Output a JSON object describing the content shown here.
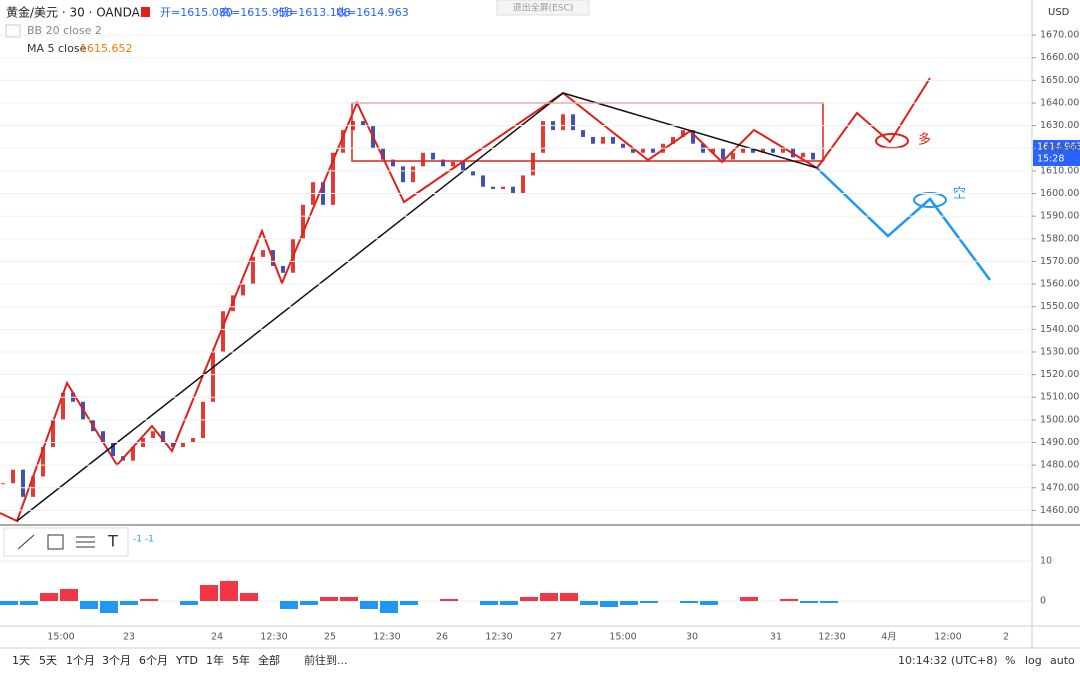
{
  "header": {
    "symbol": "黄金/美元 · 30 · OANDA",
    "open": "开=1615.080",
    "high": "高=1615.958",
    "low": "低=1613.108",
    "close": "收=1614.963",
    "bb": "BB 20 close 2",
    "ma_label": "MA 5 close",
    "ma_value": "1615.652",
    "exit": "退出全屏(ESC)",
    "currency": "USD",
    "price_tag": "1614.963",
    "countdown": "15:28"
  },
  "price_chart": {
    "ylim": [
      1454,
      1685.5
    ],
    "yticks": [
      {
        "value": 1460,
        "label": "1460.000"
      },
      {
        "value": 1470,
        "label": "1470.000"
      },
      {
        "value": 1480,
        "label": "1480.000"
      },
      {
        "value": 1490,
        "label": "1490.000"
      },
      {
        "value": 1500,
        "label": "1500.000"
      },
      {
        "value": 1510,
        "label": "1510.000"
      },
      {
        "value": 1520,
        "label": "1520.000"
      },
      {
        "value": 1530,
        "label": "1530.000"
      },
      {
        "value": 1540,
        "label": "1540.000"
      },
      {
        "value": 1550,
        "label": "1550.000"
      },
      {
        "value": 1560,
        "label": "1560.000"
      },
      {
        "value": 1570,
        "label": "1570.000"
      },
      {
        "value": 1580,
        "label": "1580.000"
      },
      {
        "value": 1590,
        "label": "1590.000"
      },
      {
        "value": 1600,
        "label": "1600.000"
      },
      {
        "value": 1610,
        "label": "1610.000"
      },
      {
        "value": 1620,
        "label": "1620.000"
      },
      {
        "value": 1630,
        "label": "1630.000"
      },
      {
        "value": 1640,
        "label": "1640.000"
      },
      {
        "value": 1650,
        "label": "1650.000"
      },
      {
        "value": 1660,
        "label": "1660.000"
      },
      {
        "value": 1670,
        "label": "1670.000"
      }
    ],
    "closes": [
      1472,
      1478,
      1466,
      1475,
      1488,
      1500,
      1512,
      1508,
      1500,
      1495,
      1490,
      1484,
      1482,
      1488,
      1492,
      1495,
      1490,
      1488,
      1490,
      1492,
      1508,
      1530,
      1548,
      1555,
      1560,
      1572,
      1575,
      1568,
      1565,
      1580,
      1595,
      1605,
      1595,
      1618,
      1628,
      1632,
      1630,
      1620,
      1615,
      1612,
      1605,
      1612,
      1618,
      1615,
      1612,
      1614,
      1610,
      1608,
      1603,
      1602,
      1603,
      1600,
      1608,
      1618,
      1632,
      1628,
      1635,
      1628,
      1625,
      1622,
      1625,
      1622,
      1620,
      1618,
      1620,
      1618,
      1622,
      1625,
      1628,
      1622,
      1618,
      1620,
      1615,
      1618,
      1620,
      1618,
      1620,
      1618,
      1620,
      1616,
      1618,
      1615,
      1615
    ],
    "long_label": "多",
    "short_label": "空"
  },
  "indicator": {
    "ylim": [
      -6,
      18.75
    ],
    "yticks": [
      10,
      0
    ],
    "legend": "-1  -1",
    "histogram": [
      -1,
      -1,
      2,
      3,
      -2,
      -3,
      -1,
      0.5,
      0,
      -1,
      4,
      5,
      2,
      0,
      -2,
      -1,
      1,
      1,
      -2,
      -3,
      -1,
      0,
      0.5,
      0,
      -1,
      -1,
      1,
      2,
      2,
      -1,
      -1.5,
      -1,
      -0.5,
      0,
      -0.5,
      -1,
      0,
      1,
      0,
      0.5,
      -0.5,
      -0.5
    ]
  },
  "time_axis": [
    "15:00",
    "23",
    "24",
    "12:30",
    "25",
    "12:30",
    "26",
    "12:30",
    "27",
    "15:00",
    "30",
    "31",
    "12:30",
    "4月",
    "12:00",
    "2"
  ],
  "bottom_bar": {
    "ranges": [
      "1天",
      "5天",
      "1个月",
      "3个月",
      "6个月",
      "YTD",
      "1年",
      "5年",
      "全部"
    ],
    "goto": "前往到...",
    "clock": "10:14:32 (UTC+8)",
    "percent": "%",
    "log": "log",
    "auto": "auto"
  }
}
